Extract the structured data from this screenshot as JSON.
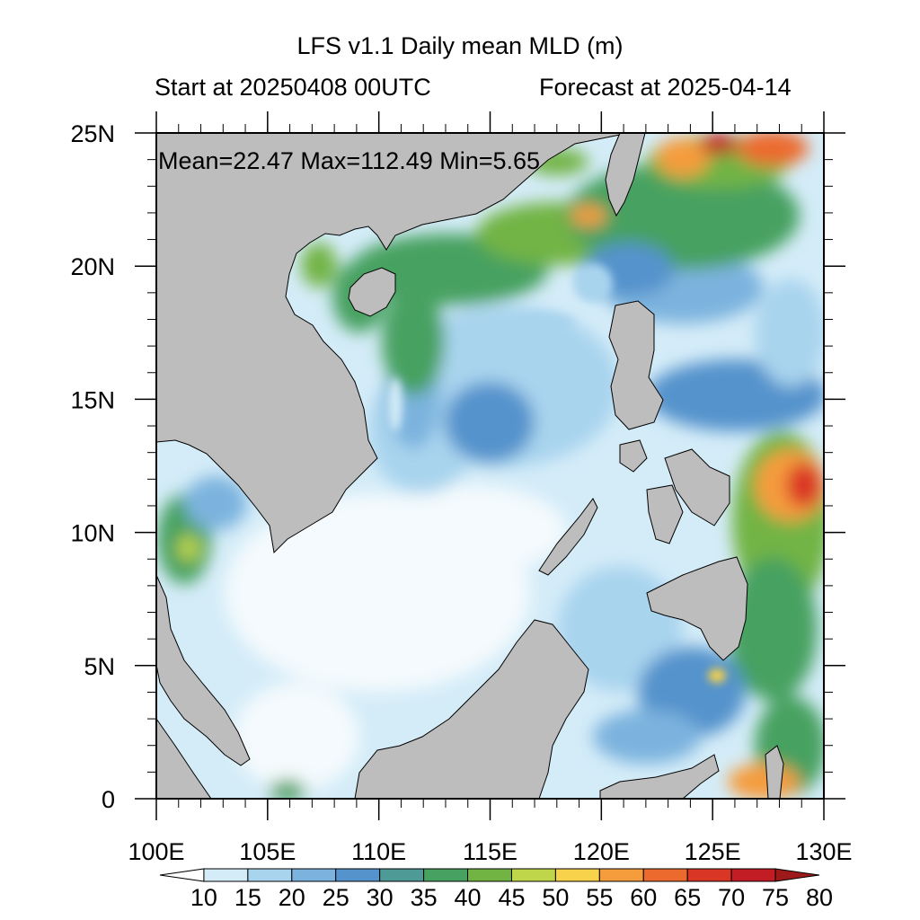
{
  "title": "LFS v1.1 Daily mean MLD (m)",
  "start_label": "Start at 20250408 00UTC",
  "forecast_label": "Forecast at 2025-04-14",
  "stats": {
    "text": "Mean=22.47  Max=112.49  Min=5.65",
    "mean": 22.47,
    "max": 112.49,
    "min": 5.65
  },
  "axes": {
    "lon": {
      "min": 100,
      "max": 130,
      "ticks": [
        "100E",
        "105E",
        "110E",
        "115E",
        "120E",
        "125E",
        "130E"
      ]
    },
    "lat": {
      "min": 0,
      "max": 25,
      "ticks": [
        "0",
        "5N",
        "10N",
        "15N",
        "20N",
        "25N"
      ]
    }
  },
  "colorbar": {
    "levels": [
      "10",
      "15",
      "20",
      "25",
      "30",
      "35",
      "40",
      "45",
      "50",
      "55",
      "60",
      "65",
      "70",
      "75",
      "80"
    ],
    "colors": [
      "#ffffff",
      "#d4ecf8",
      "#a9d4ee",
      "#7bb3de",
      "#5593cc",
      "#4d9a96",
      "#47a160",
      "#72b444",
      "#c0d64a",
      "#f7d24a",
      "#f59c3c",
      "#ec6a2e",
      "#da3626",
      "#c21d24",
      "#9e1a1a"
    ]
  },
  "land_color": "#bdbdbd"
}
